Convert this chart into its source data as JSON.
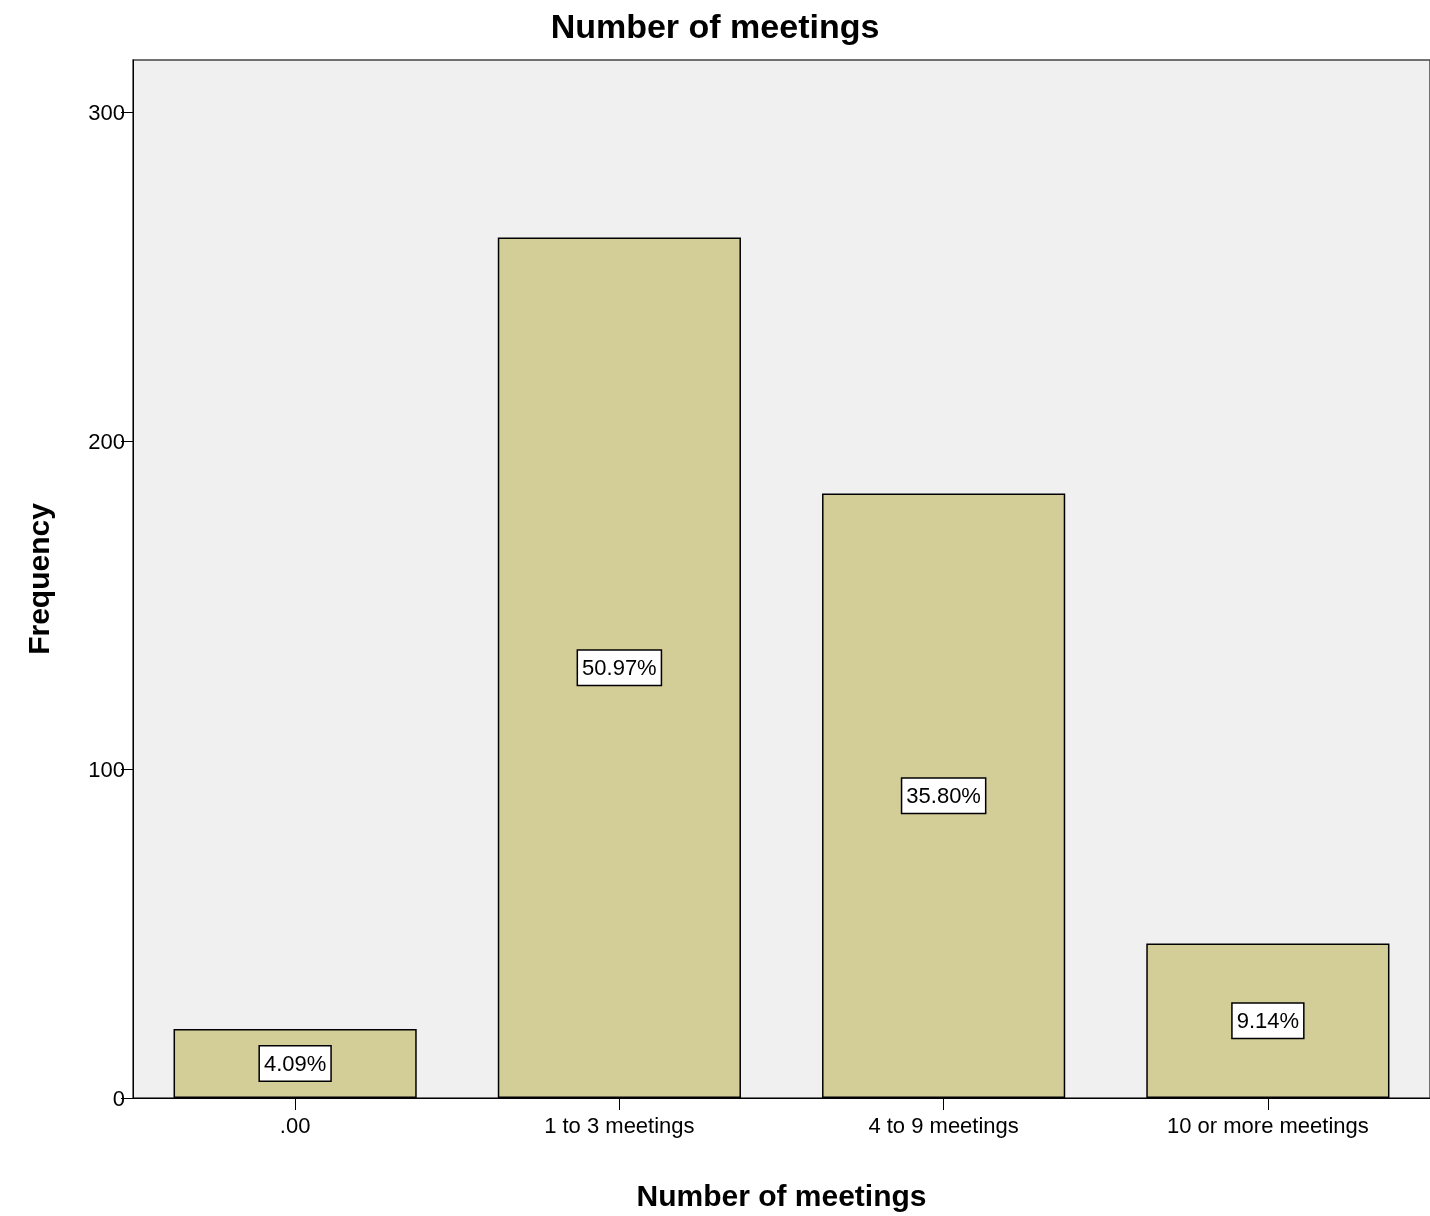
{
  "chart_data": {
    "type": "bar",
    "title": "Number of meetings",
    "xlabel": "Number of meetings",
    "ylabel": "Frequency",
    "categories": [
      ".00",
      "1 to 3 meetings",
      "4 to 9 meetings",
      "10 or more meetings"
    ],
    "values": [
      21,
      262,
      184,
      47
    ],
    "annotations": [
      "4.09%",
      "50.97%",
      "35.80%",
      "9.14%"
    ],
    "color": "#d3cd97",
    "ylim": [
      0,
      316
    ],
    "yticks": [
      0,
      100,
      200,
      300
    ],
    "grid": false
  }
}
